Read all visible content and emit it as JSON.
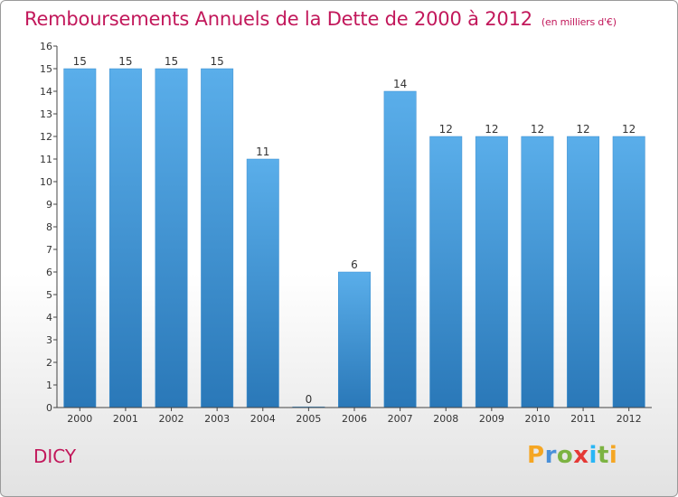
{
  "title": "Remboursements Annuels de la Dette de 2000 à 2012",
  "subtitle": "(en milliers d'€)",
  "city": "DICY",
  "brand": {
    "letters": [
      "P",
      "r",
      "o",
      "x",
      "i",
      "t",
      "i"
    ],
    "colors": [
      "#f5a623",
      "#4a90d9",
      "#7cb342",
      "#e53935",
      "#29b6f6",
      "#7cb342",
      "#f5a623"
    ]
  },
  "colors": {
    "bar": "#4a9fe0",
    "bar_dark": "#2a78b8",
    "title": "#c2185b",
    "axis": "#333333"
  },
  "chart_data": {
    "type": "bar",
    "categories": [
      "2000",
      "2001",
      "2002",
      "2003",
      "2004",
      "2005",
      "2006",
      "2007",
      "2008",
      "2009",
      "2010",
      "2011",
      "2012"
    ],
    "values": [
      15,
      15,
      15,
      15,
      11,
      0,
      6,
      14,
      12,
      12,
      12,
      12,
      12
    ],
    "ylim": [
      0,
      16
    ],
    "yticks": [
      0,
      1,
      2,
      3,
      4,
      5,
      6,
      7,
      8,
      9,
      10,
      11,
      12,
      13,
      14,
      15,
      16
    ],
    "xlabel": "",
    "ylabel": "",
    "grid": false,
    "data_labels": true
  }
}
